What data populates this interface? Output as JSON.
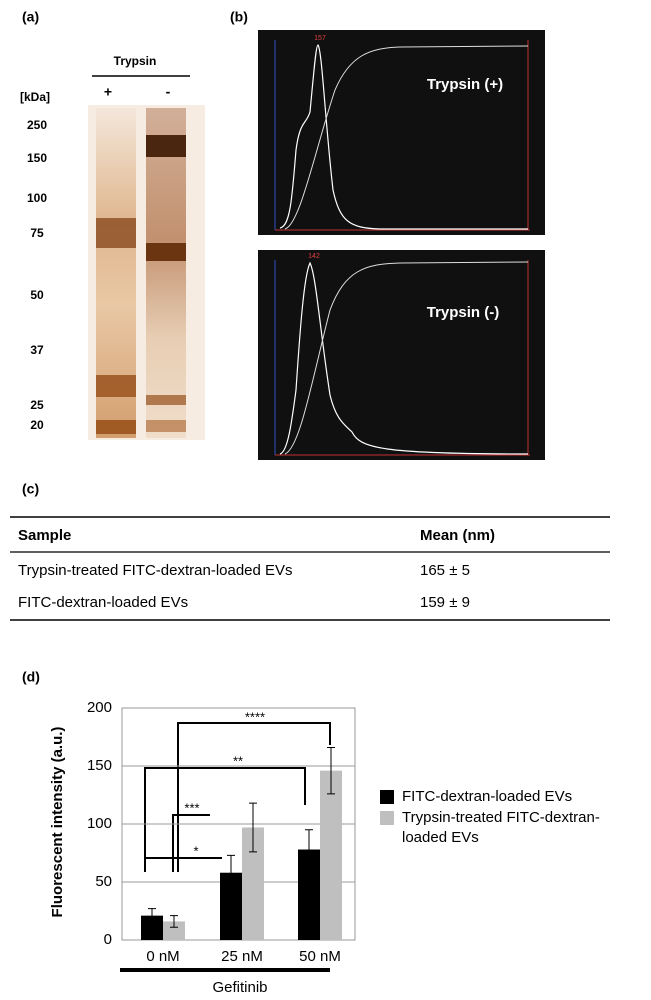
{
  "panel_a": {
    "label": "(a)",
    "title": "Trypsin",
    "unit": "[kDa]",
    "lanes": [
      "+",
      "-"
    ],
    "markers": [
      "250",
      "150",
      "100",
      "75",
      "50",
      "37",
      "25",
      "20"
    ]
  },
  "panel_b": {
    "label": "(b)",
    "plots": [
      {
        "title": "Trypsin (+)",
        "peak": "157"
      },
      {
        "title": "Trypsin (-)",
        "peak": "142"
      }
    ]
  },
  "panel_c": {
    "label": "(c)",
    "table": {
      "header": [
        "Sample",
        "Mean (nm)"
      ],
      "rows": [
        [
          "Trypsin-treated FITC-dextran-loaded EVs",
          "165 ± 5"
        ],
        [
          "FITC-dextran-loaded EVs",
          "159 ± 9"
        ]
      ]
    }
  },
  "panel_d_label": "(d)",
  "chart_data": {
    "type": "bar",
    "y_label": "Fluorescent intensity (a.u.)",
    "x_label": "Gefitinib",
    "categories": [
      "0 nM",
      "25 nM",
      "50 nM"
    ],
    "series": [
      {
        "name": "FITC-dextran-loaded EVs",
        "color": "#000000",
        "values": [
          21,
          58,
          78
        ],
        "errors": [
          6,
          15,
          17
        ]
      },
      {
        "name": "Trypsin-treated FITC-dextran-loaded EVs",
        "color": "#bfbfbf",
        "values": [
          16,
          97,
          146
        ],
        "errors": [
          5,
          21,
          20
        ]
      }
    ],
    "ylim": [
      0,
      200
    ],
    "yticks": [
      0,
      50,
      100,
      150,
      200
    ],
    "grid": true,
    "annotations": [
      "*",
      "***",
      "**",
      "****"
    ]
  }
}
